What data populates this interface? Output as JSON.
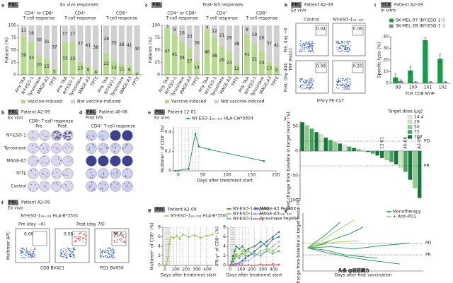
{
  "chart_data": [
    {
      "type": "stacked",
      "letter": "a",
      "badge": "PBL",
      "title": "Ex vivo responses",
      "ylabel": "Patients (%)",
      "ylim": [
        0,
        100
      ],
      "yticks": [
        0,
        25,
        50,
        75,
        100
      ],
      "series": [
        {
          "name": "Vaccine-induced",
          "color": "#b6da8e"
        },
        {
          "name": "Not vaccine-induced",
          "color": "#d0d0d0"
        }
      ],
      "groups": [
        {
          "subtitle": [
            "CD4⁺ or CD8⁺",
            "T-cell response"
          ],
          "categories": [
            "Any TAA",
            "NY-ESO-1",
            "Tyrosinase",
            "MAGE-A3",
            "TPTE"
          ],
          "values": [
            [
              78,
              67,
              40,
              33,
              12
            ],
            [
              22,
              33,
              60,
              67,
              88
            ]
          ],
          "counts": [
            [
              39,
              33,
              20,
              15,
              5
            ],
            [
              11,
              16,
              30,
              31,
              37
            ]
          ]
        },
        {
          "subtitle": [
            "CD4⁺",
            "T-cell response"
          ],
          "categories": [
            "Any TAA",
            "NY-ESO-1",
            "Tyrosinase",
            "MAGE-A3",
            "TPTE"
          ],
          "values": [
            [
              66,
              65,
              26,
              18,
              10
            ],
            [
              34,
              35,
              74,
              82,
              90
            ]
          ],
          "counts": [
            [
              33,
              32,
              13,
              9,
              4
            ],
            [
              17,
              17,
              37,
              41,
              38
            ]
          ]
        },
        {
          "subtitle": [
            "CD8⁺",
            "T-cell response"
          ],
          "categories": [
            "Any TAA",
            "NY-ESO-1",
            "Tyrosinase",
            "MAGE-A3",
            "TPTE"
          ],
          "values": [
            [
              44,
              29,
              22,
              18,
              5
            ],
            [
              56,
              71,
              78,
              82,
              95
            ]
          ],
          "counts": [
            [
              22,
              14,
              11,
              9,
              2
            ],
            [
              28,
              35,
              39,
              41,
              40
            ]
          ]
        }
      ]
    },
    {
      "type": "stacked",
      "letter": "c",
      "badge": "PBL",
      "title": "Post-IVS responses",
      "ylabel": "Patients (%)",
      "ylim": [
        0,
        100
      ],
      "yticks": [
        0,
        25,
        50,
        75,
        100
      ],
      "series": [
        {
          "name": "Vaccine-induced",
          "color": "#b6da8e"
        },
        {
          "name": "Not vaccine-induced",
          "color": "#d0d0d0"
        }
      ],
      "groups": [
        {
          "subtitle": [
            "CD4⁺ or CD8⁺",
            "T-cell response"
          ],
          "categories": [
            "Any TAA",
            "NY-ESO-1",
            "Tyrosinase",
            "MAGE-A3",
            "TPTE"
          ],
          "values": [
            [
              94,
              82,
              68,
              54,
              28
            ],
            [
              6,
              18,
              32,
              46,
              72
            ]
          ],
          "counts": [
            [
              47,
              41,
              34,
              27,
              14
            ],
            [
              3,
              9,
              16,
              23,
              36
            ]
          ]
        },
        {
          "subtitle": [
            "CD4⁺",
            "T-cell response"
          ],
          "categories": [
            "Any TAA",
            "NY-ESO-1",
            "Tyrosinase",
            "MAGE-A3",
            "TPTE"
          ],
          "values": [
            [
              92,
              76,
              58,
              48,
              24
            ],
            [
              8,
              24,
              42,
              52,
              76
            ]
          ],
          "counts": [
            [
              46,
              38,
              29,
              24,
              12
            ],
            [
              4,
              12,
              21,
              26,
              38
            ]
          ]
        },
        {
          "subtitle": [
            "CD8⁺",
            "T-cell response"
          ],
          "categories": [
            "Any TAA",
            "NY-ESO-1",
            "Tyrosinase",
            "MAGE-A3",
            "TPTE"
          ],
          "values": [
            [
              82,
              62,
              48,
              26,
              18
            ],
            [
              18,
              38,
              52,
              74,
              82
            ]
          ],
          "counts": [
            [
              41,
              31,
              24,
              13,
              9
            ],
            [
              9,
              19,
              26,
              37,
              41
            ]
          ]
        }
      ]
    },
    {
      "type": "line",
      "letter": "e",
      "badge": "PBL",
      "patient": "Patient 12-01",
      "condition": "Ex vivo",
      "markers": true,
      "xlabel": "Days after treatment start",
      "ylabel": "Multimer⁺ of CD8⁺ (%)",
      "xlim": [
        -10,
        200
      ],
      "xticks": [
        0,
        50,
        100,
        150,
        200
      ],
      "ylim": [
        0,
        0.45
      ],
      "yticks": [
        0,
        0.2,
        0.4
      ],
      "vaccinations": [
        0,
        7,
        14,
        21,
        28,
        35,
        42
      ],
      "x": [
        -6,
        21,
        35,
        42,
        63,
        175
      ],
      "series": [
        {
          "name": "NY-ESO-1₉₂₋₁₀₀ HLA-Cw*0304",
          "color": "#1a8a4a",
          "values": [
            0,
            0.02,
            0.38,
            0.25,
            0.22,
            0.1
          ]
        }
      ]
    },
    {
      "type": "line",
      "letter": "g",
      "badge": "PBL",
      "patient": "Patient A2-09",
      "markers": true,
      "xlabel": "Days after treatment start",
      "ylabel": "Multimer⁺ of CD8⁺ (%)",
      "xlim": [
        -20,
        460
      ],
      "xticks": [
        0,
        100,
        200,
        300,
        400
      ],
      "ylim": [
        0,
        8
      ],
      "yticks": [
        0,
        2,
        4,
        6,
        8
      ],
      "vaccinations": [
        0,
        7,
        14,
        21,
        28,
        35,
        42,
        56,
        84,
        112,
        140,
        168,
        224,
        280,
        336,
        392
      ],
      "x": [
        -6,
        14,
        28,
        42,
        56,
        84,
        112,
        140,
        168,
        224,
        280,
        336,
        392,
        448
      ],
      "series": [
        {
          "name": "NY-ESO-1₉₄₋₁₀₄ HLA-B*3501",
          "color": "#8cc63f",
          "values": [
            0,
            0.2,
            1.5,
            4.5,
            6,
            5.8,
            6.2,
            5.5,
            6.5,
            6,
            6.3,
            5.8,
            6.2,
            6.5
          ]
        }
      ]
    },
    {
      "type": "line",
      "markers": true,
      "xlabel": "Days after treatment start",
      "ylabel": "IFN-γ⁺ of CD8⁺ (%)",
      "xlim": [
        -20,
        460
      ],
      "xticks": [
        0,
        100,
        200,
        300,
        400
      ],
      "ylim": [
        0,
        8
      ],
      "yticks": [
        0,
        2,
        4,
        6,
        8
      ],
      "vaccinations": [
        0,
        7,
        14,
        21,
        28,
        35,
        42,
        56,
        84,
        112,
        140,
        168,
        224,
        280,
        336,
        392
      ],
      "x": [
        -6,
        14,
        28,
        42,
        56,
        84,
        112,
        140,
        168,
        224,
        280,
        336,
        392,
        448
      ],
      "series": [
        {
          "name": "NY-ESO-1 PepMix",
          "color": "#1a7f3c",
          "values": [
            0,
            0.5,
            2,
            3,
            4,
            3.5,
            4,
            3,
            3.5,
            4,
            5,
            4,
            5.5,
            6
          ]
        },
        {
          "name": "NY-ESO-1₉₂₋₁₀₇",
          "color": "#8cc63f",
          "values": [
            0,
            0.3,
            1,
            2,
            2.5,
            2,
            3,
            2.5,
            3,
            2,
            3,
            3.5,
            3,
            4
          ]
        },
        {
          "name": "NY-ESO-1₉₄₋₁₀₂",
          "color": "#4fb06b",
          "values": [
            0,
            0.2,
            0.8,
            1.5,
            2,
            1.5,
            2.5,
            2,
            2,
            2.5,
            2,
            3,
            2.5,
            3
          ]
        },
        {
          "name": "MAGE-A3 PepMIX",
          "color": "#3a5fcd",
          "values": [
            0,
            0,
            0.1,
            0.2,
            0.3,
            0.5,
            1,
            1.5,
            2,
            3,
            4,
            5,
            6,
            7
          ]
        },
        {
          "name": "MAGE-A3₁₁₂₋₁₂₀",
          "color": "#9aa7e0",
          "values": [
            0,
            0,
            0,
            0.1,
            0.2,
            0.3,
            0.5,
            1,
            1,
            2,
            2.5,
            3,
            4,
            5
          ]
        },
        {
          "name": "Tyrosinase PepMix",
          "color": "#e07070",
          "values": [
            0,
            0,
            0,
            0,
            0,
            0,
            0.1,
            0,
            0.1,
            0,
            0.2,
            0.1,
            0.3,
            0.2
          ]
        }
      ]
    },
    {
      "type": "bar",
      "letter": "i",
      "badge": "TCR",
      "patient": "Patient A2-09",
      "condition": "In vitro",
      "xlabel": "TCR CD8 NY#-",
      "ylabel": "Specific lysis (%)",
      "categories": [
        "99",
        "100",
        "101",
        "102"
      ],
      "ylim": [
        0,
        40
      ],
      "yticks": [
        0,
        10,
        20,
        30,
        40
      ],
      "series": [
        {
          "name": "SK-MEL-37 (NY-ESO-1⁺)",
          "color": "#1a9b4a",
          "values": [
            5,
            11,
            37,
            21
          ],
          "errors": [
            3,
            3,
            2,
            4
          ]
        },
        {
          "name": "SK-MEL-28 (NY-ESO-1⁻)",
          "color": "#8a8a8a",
          "values": [
            2,
            1,
            1,
            1
          ],
          "errors": [
            1,
            0.5,
            0.5,
            0.5
          ]
        }
      ]
    },
    {
      "type": "waterfall",
      "letter": "j",
      "ylabel": "Best change from baseline in target lesion (%)",
      "ylim": [
        -100,
        60
      ],
      "yticks": [
        -100,
        -50,
        0,
        50
      ],
      "legend_title": "Target dose (µg)",
      "doses": [
        14.4,
        29,
        50,
        75,
        100
      ],
      "dose_colors": [
        "#e4e4e4",
        "#cde8bd",
        "#8fcf8a",
        "#3fa85e",
        "#117a3a"
      ],
      "values": [
        58,
        52,
        45,
        38,
        33,
        27,
        22,
        18,
        15,
        12,
        9,
        6,
        4,
        2,
        -2,
        -5,
        -9,
        -14,
        -18,
        -22,
        -27,
        -33,
        -42,
        -58,
        -75,
        -95
      ],
      "dose": [
        100,
        50,
        75,
        100,
        29,
        100,
        75,
        50,
        100,
        14.4,
        75,
        100,
        50,
        29,
        100,
        75,
        100,
        100,
        50,
        75,
        100,
        29,
        75,
        100,
        50,
        100
      ],
      "thresholds": [
        {
          "label": "PD",
          "value": 20
        },
        {
          "label": "PR",
          "value": -30
        }
      ],
      "annotations": [
        {
          "text": "12-01",
          "index": 17
        },
        {
          "text": "40-06",
          "index": 22
        },
        {
          "text": "A2-09",
          "index": 25
        }
      ]
    },
    {
      "type": "line",
      "letter": "k",
      "xlabel": "Days after first vaccination",
      "ylabel": "Change from baseline in target lesion (%)",
      "xlim": [
        -10,
        250
      ],
      "ylim": [
        -100,
        150
      ],
      "thresholds": [
        {
          "label": "PD",
          "value": 20
        },
        {
          "label": "PR",
          "value": -30
        }
      ],
      "legend": [
        {
          "name": "Monotherapy",
          "color": "#1a8a4a"
        },
        {
          "name": "+ Anti-PD1",
          "color": "#9ccc5a"
        }
      ],
      "series": [
        {
          "color": "#1a8a4a",
          "x": [
            0,
            30,
            60,
            90,
            120
          ],
          "values": [
            0,
            15,
            40,
            60,
            90
          ]
        },
        {
          "color": "#1a8a4a",
          "x": [
            0,
            40,
            80,
            150
          ],
          "values": [
            0,
            -10,
            -30,
            -45
          ]
        },
        {
          "color": "#9ccc5a",
          "x": [
            0,
            30,
            60,
            100
          ],
          "values": [
            0,
            30,
            70,
            120
          ]
        },
        {
          "color": "#1a8a4a",
          "x": [
            0,
            50,
            100,
            160,
            220
          ],
          "values": [
            0,
            5,
            -5,
            10,
            20
          ]
        },
        {
          "color": "#9ccc5a",
          "x": [
            0,
            30,
            70
          ],
          "values": [
            0,
            20,
            45
          ]
        },
        {
          "color": "#1a8a4a",
          "x": [
            0,
            40,
            90,
            140,
            200
          ],
          "values": [
            0,
            -20,
            -40,
            -55,
            -70
          ]
        },
        {
          "color": "#9ccc5a",
          "x": [
            0,
            25,
            60,
            110
          ],
          "values": [
            0,
            10,
            25,
            30
          ]
        },
        {
          "color": "#1a8a4a",
          "x": [
            0,
            35,
            70
          ],
          "values": [
            0,
            50,
            110
          ]
        }
      ]
    }
  ],
  "panels": {
    "b": {
      "letter": "b",
      "badge": "PBL",
      "patient": "Patient A2-09",
      "condition": "Ex vivo",
      "title": "CD8⁺ T-cell response",
      "columns": [
        "Pre",
        "Post"
      ],
      "rows": [
        "NY-ESO-1",
        "Tyrosinase",
        "MAGE-A3",
        "TPTE",
        "Control"
      ]
    },
    "d": {
      "letter": "d",
      "badge": "PBL",
      "patient": "Patient 40-06",
      "condition": "Post IVS",
      "title": "CD4⁺ T-cell response"
    },
    "f": {
      "letter": "f",
      "badge": "PBL",
      "patient": "Patient A2-09",
      "condition": "Ex vivo",
      "epitope": "NY-ESO-1₉₄₋₁₀₄ HLA-B*3501",
      "pre": "Pre (day −6)",
      "post": "Post (day 76)",
      "gates": [
        "0.00",
        "0.58",
        "99.6"
      ],
      "y_axis": "Multimer APC",
      "x_axes": [
        "CD8 BV421",
        "PD1 BV650"
      ]
    },
    "h": {
      "letter": "h",
      "badge": "PBL",
      "patient": "Patient A2-09",
      "condition": "Ex vivo",
      "columns": [
        "Control",
        "NY-ESO-1₉₄₋₁₀₂"
      ],
      "rows": [
        "Pre, day −6",
        "Post, day 444"
      ],
      "gates": [
        "0.04",
        "0.06",
        "0.06",
        "0.20"
      ],
      "y_axis": "TNF BV421",
      "x_axis": "IFN-γ PE-Cy7"
    }
  },
  "watermark": "头条 @医药魔方"
}
